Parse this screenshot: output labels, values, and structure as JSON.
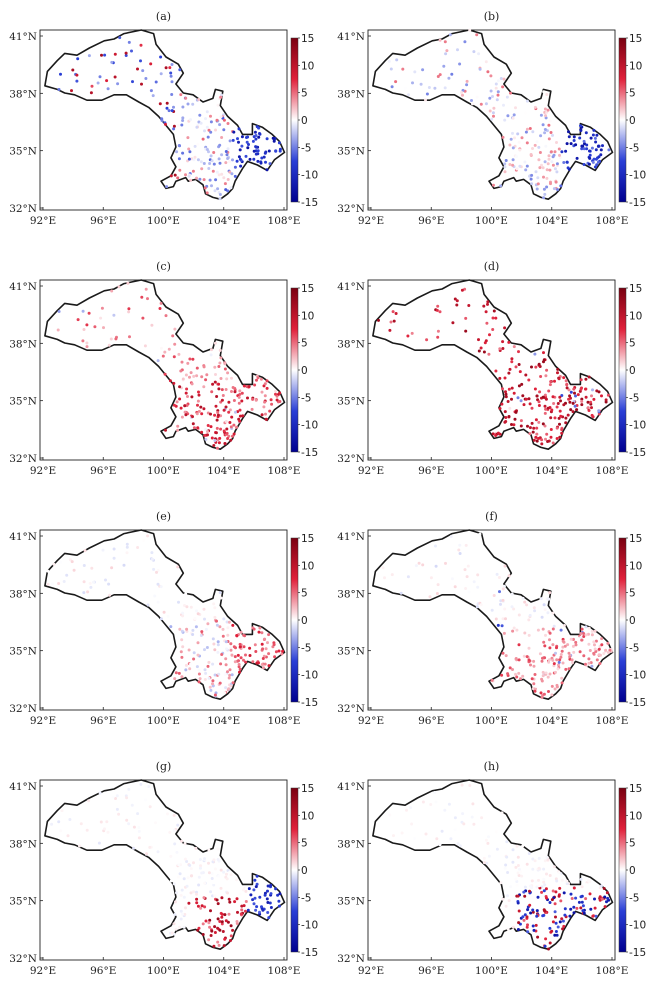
{
  "figure": {
    "panels": [
      {
        "label": "(a)",
        "pattern": "mixed_blue_east"
      },
      {
        "label": "(b)",
        "pattern": "mixed_blue_sparse"
      },
      {
        "label": "(c)",
        "pattern": "mostly_red"
      },
      {
        "label": "(d)",
        "pattern": "strong_red"
      },
      {
        "label": "(e)",
        "pattern": "light_mixed"
      },
      {
        "label": "(f)",
        "pattern": "light_red"
      },
      {
        "label": "(g)",
        "pattern": "south_red_east_blue"
      },
      {
        "label": "(h)",
        "pattern": "south_mixed"
      }
    ],
    "x_ticks": [
      "92°E",
      "96°E",
      "100°E",
      "104°E",
      "108°E"
    ],
    "y_ticks": [
      "32°N",
      "35°N",
      "38°N",
      "41°N"
    ],
    "colorbar": {
      "ticks": [
        "15",
        "10",
        "5",
        "0",
        "-5",
        "-10",
        "-15"
      ],
      "min": -15,
      "max": 15,
      "colors": [
        "#00008f",
        "#2a3fd6",
        "#ffffff",
        "#e0203a",
        "#7a0010"
      ]
    }
  }
}
